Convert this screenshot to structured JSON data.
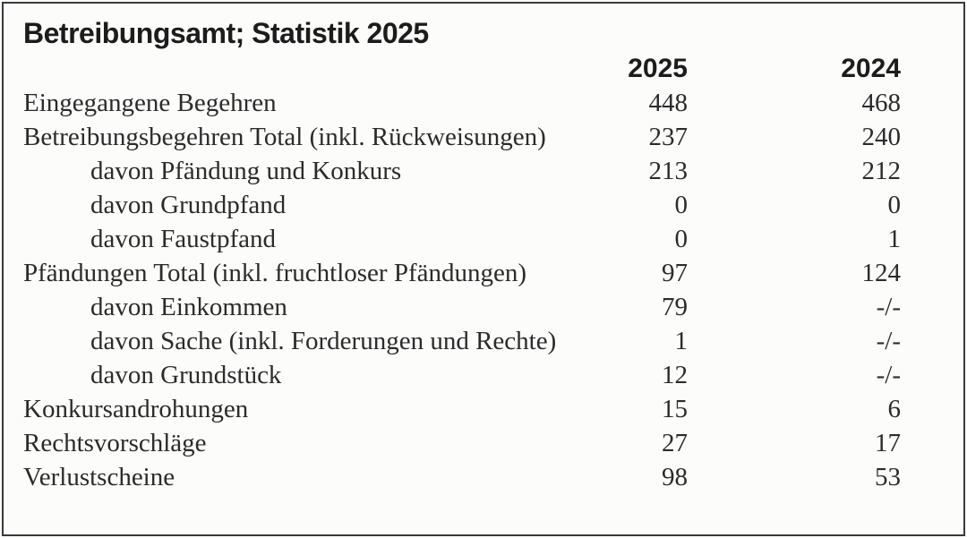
{
  "table": {
    "title": "Betreibungsamt; Statistik 2025",
    "columns": [
      "2025",
      "2024"
    ],
    "rows": [
      {
        "label": "Eingegangene Begehren",
        "v2025": "448",
        "v2024": "468"
      },
      {
        "label": "Betreibungsbegehren Total (inkl. Rückweisungen)",
        "v2025": "237",
        "v2024": "240"
      },
      {
        "label": "davon Pfändung und Konkurs",
        "v2025": "213",
        "v2024": "212"
      },
      {
        "label": "davon Grundpfand",
        "v2025": "0",
        "v2024": "0"
      },
      {
        "label": "davon Faustpfand",
        "v2025": "0",
        "v2024": "1"
      },
      {
        "label": "Pfändungen Total (inkl. fruchtloser Pfändungen)",
        "v2025": "97",
        "v2024": "124"
      },
      {
        "label": "davon Einkommen",
        "v2025": "79",
        "v2024": "-/-"
      },
      {
        "label": "davon Sache (inkl. Forderungen und Rechte)",
        "v2025": "1",
        "v2024": "-/-"
      },
      {
        "label": "davon Grundstück",
        "v2025": "12",
        "v2024": "-/-"
      },
      {
        "label": "Konkursandrohungen",
        "v2025": "15",
        "v2024": "6"
      },
      {
        "label": "Rechtsvorschläge",
        "v2025": "27",
        "v2024": "17"
      },
      {
        "label": "Verlustscheine",
        "v2025": "98",
        "v2024": "53"
      }
    ]
  }
}
